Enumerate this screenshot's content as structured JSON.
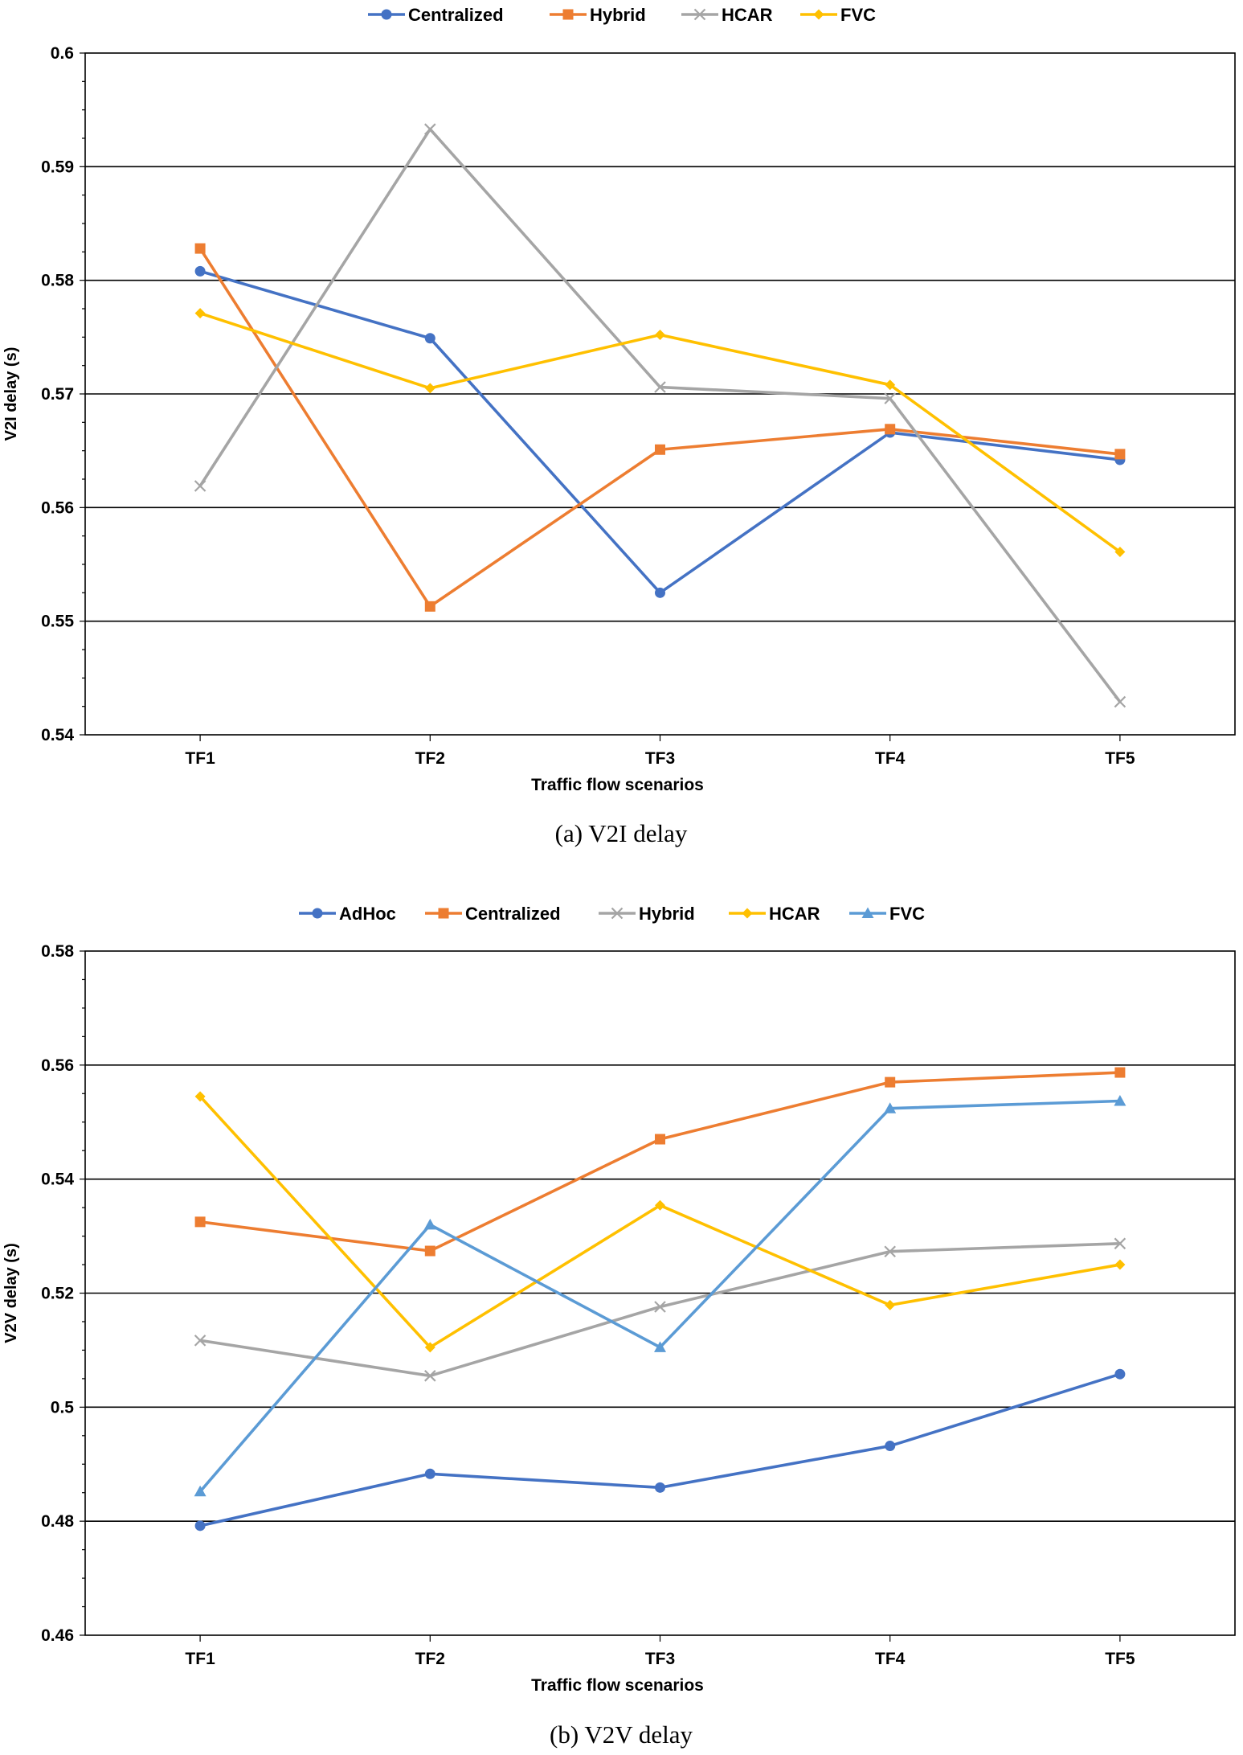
{
  "chart_data": [
    {
      "type": "line",
      "caption": "(a) V2I delay",
      "xlabel": "Traffic flow scenarios",
      "ylabel": "V2I delay (s)",
      "categories": [
        "TF1",
        "TF2",
        "TF3",
        "TF4",
        "TF5"
      ],
      "ylim": [
        0.54,
        0.6
      ],
      "yticks": [
        0.54,
        0.55,
        0.56,
        0.57,
        0.58,
        0.59,
        0.6
      ],
      "ytick_labels": [
        "0.54",
        "0.55",
        "0.56",
        "0.57",
        "0.58",
        "0.59",
        "0.6"
      ],
      "grid": true,
      "legend_position": "top",
      "series": [
        {
          "name": "Centralized",
          "marker": "circle",
          "color": "#4472C4",
          "values": [
            0.5808,
            0.5749,
            0.5525,
            0.5666,
            0.5642
          ]
        },
        {
          "name": "Hybrid",
          "marker": "square",
          "color": "#ED7D31",
          "values": [
            0.5828,
            0.5513,
            0.5651,
            0.5669,
            0.5647
          ]
        },
        {
          "name": "HCAR",
          "marker": "x",
          "color": "#A5A5A5",
          "values": [
            0.5619,
            0.5933,
            0.5706,
            0.5696,
            0.5429
          ]
        },
        {
          "name": "FVC",
          "marker": "diamond",
          "color": "#FFC000",
          "values": [
            0.5771,
            0.5705,
            0.5752,
            0.5708,
            0.5561
          ]
        }
      ]
    },
    {
      "type": "line",
      "caption": "(b) V2V delay",
      "xlabel": "Traffic flow scenarios",
      "ylabel": "V2V delay (s)",
      "categories": [
        "TF1",
        "TF2",
        "TF3",
        "TF4",
        "TF5"
      ],
      "ylim": [
        0.46,
        0.58
      ],
      "yticks": [
        0.46,
        0.48,
        0.5,
        0.52,
        0.54,
        0.56,
        0.58
      ],
      "ytick_labels": [
        "0.46",
        "0.48",
        "0.5",
        "0.52",
        "0.54",
        "0.56",
        "0.58"
      ],
      "grid": true,
      "legend_position": "top",
      "series": [
        {
          "name": "AdHoc",
          "marker": "circle",
          "color": "#4472C4",
          "values": [
            0.4792,
            0.4883,
            0.4859,
            0.4932,
            0.5058
          ]
        },
        {
          "name": "Centralized",
          "marker": "square",
          "color": "#ED7D31",
          "values": [
            0.5325,
            0.5274,
            0.547,
            0.557,
            0.5587
          ]
        },
        {
          "name": "Hybrid",
          "marker": "x",
          "color": "#A5A5A5",
          "values": [
            0.5117,
            0.5055,
            0.5176,
            0.5273,
            0.5287
          ]
        },
        {
          "name": "HCAR",
          "marker": "diamond",
          "color": "#FFC000",
          "values": [
            0.5545,
            0.5105,
            0.5354,
            0.5179,
            0.525
          ]
        },
        {
          "name": "FVC",
          "marker": "triangle",
          "color": "#5B9BD5",
          "values": [
            0.4852,
            0.532,
            0.5105,
            0.5524,
            0.5537
          ]
        }
      ]
    }
  ]
}
